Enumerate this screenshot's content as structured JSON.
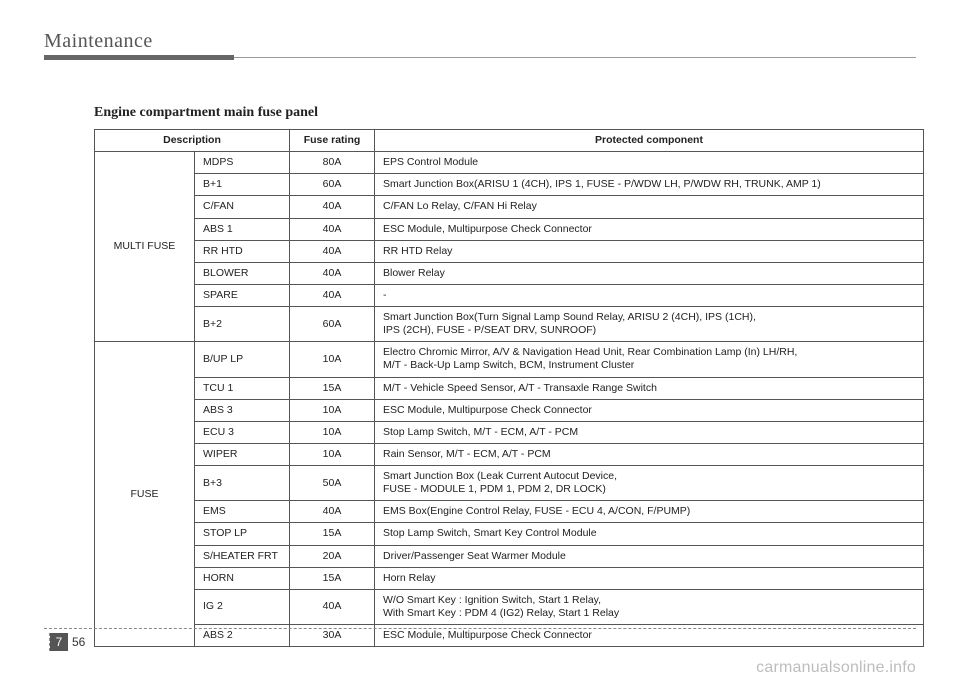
{
  "header": {
    "title": "Maintenance"
  },
  "subtitle": "Engine compartment main fuse panel",
  "table": {
    "columns": [
      "Description",
      "Fuse rating",
      "Protected component"
    ],
    "groups": [
      {
        "label": "MULTI FUSE",
        "rows": [
          {
            "desc": "MDPS",
            "rating": "80A",
            "comp": "EPS Control Module"
          },
          {
            "desc": "B+1",
            "rating": "60A",
            "comp": "Smart Junction Box(ARISU 1 (4CH), IPS 1, FUSE - P/WDW LH, P/WDW RH, TRUNK, AMP 1)"
          },
          {
            "desc": "C/FAN",
            "rating": "40A",
            "comp": "C/FAN Lo Relay, C/FAN Hi Relay"
          },
          {
            "desc": "ABS 1",
            "rating": "40A",
            "comp": "ESC Module, Multipurpose Check Connector"
          },
          {
            "desc": "RR HTD",
            "rating": "40A",
            "comp": "RR HTD Relay"
          },
          {
            "desc": "BLOWER",
            "rating": "40A",
            "comp": "Blower Relay"
          },
          {
            "desc": "SPARE",
            "rating": "40A",
            "comp": "-"
          },
          {
            "desc": "B+2",
            "rating": "60A",
            "comp": "Smart Junction Box(Turn Signal Lamp Sound Relay, ARISU 2 (4CH), IPS (1CH),\nIPS (2CH), FUSE - P/SEAT DRV, SUNROOF)"
          }
        ]
      },
      {
        "label": "FUSE",
        "rows": [
          {
            "desc": "B/UP LP",
            "rating": "10A",
            "comp": "Electro Chromic Mirror, A/V & Navigation Head Unit, Rear Combination Lamp (In) LH/RH,\nM/T - Back-Up Lamp Switch, BCM, Instrument Cluster"
          },
          {
            "desc": "TCU 1",
            "rating": "15A",
            "comp": "M/T - Vehicle Speed Sensor, A/T - Transaxle Range Switch"
          },
          {
            "desc": "ABS 3",
            "rating": "10A",
            "comp": "ESC Module, Multipurpose Check Connector"
          },
          {
            "desc": "ECU 3",
            "rating": "10A",
            "comp": "Stop Lamp Switch, M/T - ECM, A/T - PCM"
          },
          {
            "desc": "WIPER",
            "rating": "10A",
            "comp": "Rain Sensor, M/T - ECM, A/T - PCM"
          },
          {
            "desc": "B+3",
            "rating": "50A",
            "comp": "Smart Junction Box (Leak Current Autocut Device,\nFUSE - MODULE 1, PDM 1, PDM 2, DR LOCK)"
          },
          {
            "desc": "EMS",
            "rating": "40A",
            "comp": "EMS Box(Engine Control Relay, FUSE - ECU 4, A/CON, F/PUMP)"
          },
          {
            "desc": "STOP LP",
            "rating": "15A",
            "comp": "Stop Lamp Switch, Smart Key Control Module"
          },
          {
            "desc": "S/HEATER FRT",
            "rating": "20A",
            "comp": "Driver/Passenger Seat Warmer Module"
          },
          {
            "desc": "HORN",
            "rating": "15A",
            "comp": "Horn Relay"
          },
          {
            "desc": "IG 2",
            "rating": "40A",
            "comp": "W/O Smart Key : Ignition Switch, Start 1 Relay,\nWith Smart Key : PDM 4 (IG2) Relay, Start 1 Relay"
          },
          {
            "desc": "ABS 2",
            "rating": "30A",
            "comp": "ESC Module, Multipurpose Check Connector"
          }
        ]
      }
    ]
  },
  "footer": {
    "section": "7",
    "page": "56"
  },
  "watermark": "carmanualsonline.info"
}
